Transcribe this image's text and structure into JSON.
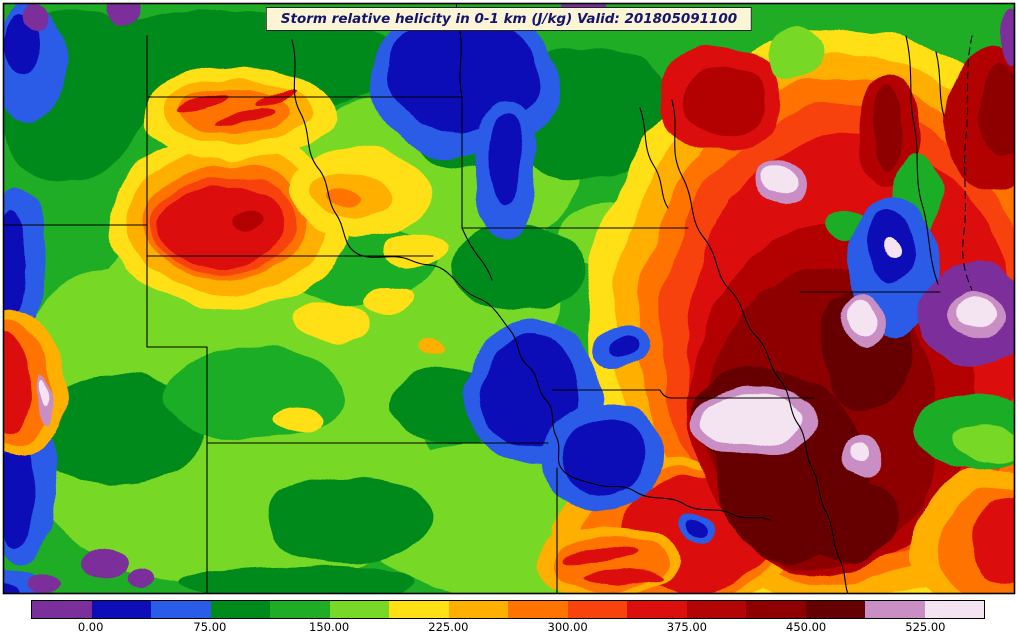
{
  "title": {
    "text": "Storm relative helicity in 0-1 km (J/kg) Valid: 201805091100"
  },
  "colorbar": {
    "tick_labels": [
      "0.00",
      "75.00",
      "150.00",
      "225.00",
      "300.00",
      "375.00",
      "450.00",
      "525.00"
    ]
  },
  "chart_data": {
    "type": "heatmap",
    "title": "Storm relative helicity in 0-1 km (J/kg)",
    "valid_time": "201805091100",
    "variable": "storm relative helicity 0-1 km",
    "units": "J/kg",
    "colorbar_orientation": "horizontal-bottom",
    "colorbar_ticks": [
      0,
      75,
      150,
      225,
      300,
      375,
      450,
      525
    ],
    "level_step": 37.5,
    "levels": [
      {
        "from": null,
        "to": 0,
        "color": "#7B2F9B"
      },
      {
        "from": 0,
        "to": 37.5,
        "color": "#0E0EB8"
      },
      {
        "from": 37.5,
        "to": 75,
        "color": "#2A5CE8"
      },
      {
        "from": 75,
        "to": 112.5,
        "color": "#008A1C"
      },
      {
        "from": 112.5,
        "to": 150,
        "color": "#1FAD26"
      },
      {
        "from": 150,
        "to": 187.5,
        "color": "#77D828"
      },
      {
        "from": 187.5,
        "to": 225,
        "color": "#FFE014"
      },
      {
        "from": 225,
        "to": 262.5,
        "color": "#FFAF00"
      },
      {
        "from": 262.5,
        "to": 300,
        "color": "#FF7300"
      },
      {
        "from": 300,
        "to": 337.5,
        "color": "#F8430F"
      },
      {
        "from": 337.5,
        "to": 375,
        "color": "#DC0F0F"
      },
      {
        "from": 375,
        "to": 412.5,
        "color": "#B30505"
      },
      {
        "from": 412.5,
        "to": 450,
        "color": "#8E0000"
      },
      {
        "from": 450,
        "to": 487.5,
        "color": "#660000"
      },
      {
        "from": 487.5,
        "to": 525,
        "color": "#C98FC4"
      },
      {
        "from": 525,
        "to": null,
        "color": "#F4E3F1"
      }
    ],
    "overlay": "US state borders, Missouri and Mississippi rivers, Lake Michigan shoreline",
    "legend_position": "bottom"
  }
}
